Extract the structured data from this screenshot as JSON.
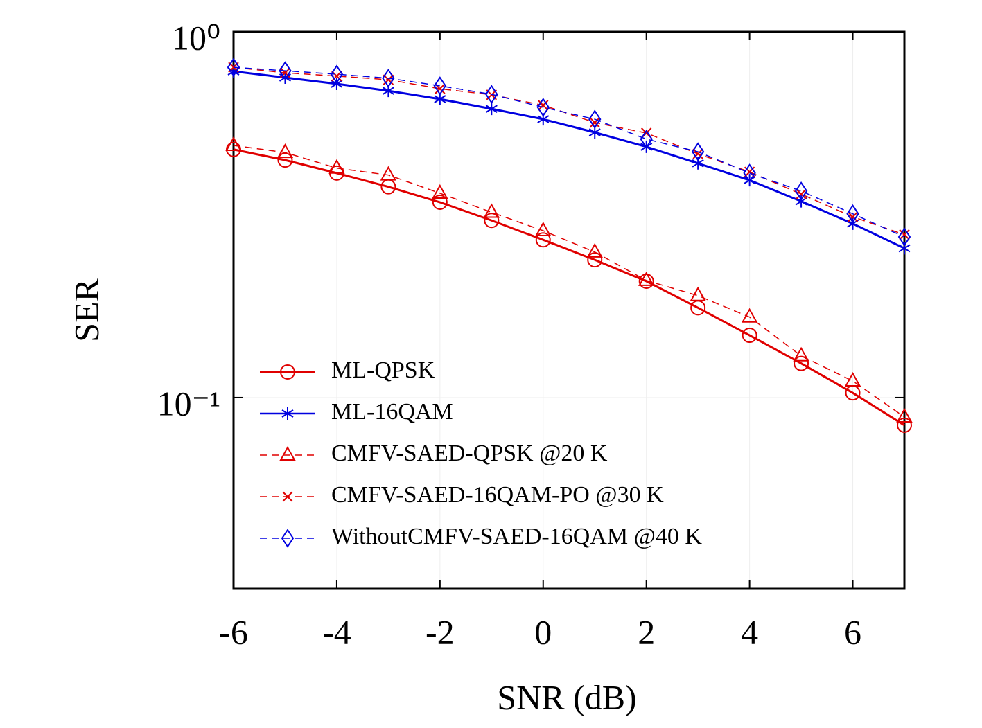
{
  "chart_data": {
    "type": "line",
    "xlabel": "SNR (dB)",
    "ylabel": "SER",
    "x": [
      -6,
      -5,
      -4,
      -3,
      -2,
      -1,
      0,
      1,
      2,
      3,
      4,
      5,
      6,
      7
    ],
    "xlim": [
      -6,
      7
    ],
    "xticks": [
      -6,
      -4,
      -2,
      0,
      2,
      4,
      6
    ],
    "ylim": [
      0.03,
      1
    ],
    "ylog": true,
    "yticks": [
      {
        "value": 1,
        "label": "10⁰"
      },
      {
        "value": 0.1,
        "label": "10⁻¹"
      }
    ],
    "grid": true,
    "legend": "lower left",
    "series": [
      {
        "name": "ML-QPSK",
        "color": "#e00000",
        "marker": "circle",
        "dashed": false,
        "values": [
          0.477,
          0.446,
          0.411,
          0.377,
          0.342,
          0.305,
          0.27,
          0.238,
          0.208,
          0.176,
          0.148,
          0.124,
          0.103,
          0.084
        ]
      },
      {
        "name": "ML-16QAM",
        "color": "#0000e0",
        "marker": "asterisk",
        "dashed": false,
        "values": [
          0.78,
          0.75,
          0.721,
          0.69,
          0.655,
          0.616,
          0.577,
          0.531,
          0.485,
          0.437,
          0.393,
          0.344,
          0.299,
          0.256
        ]
      },
      {
        "name": "CMFV-SAED-QPSK @20 K",
        "color": "#e00000",
        "marker": "triangle",
        "dashed": true,
        "values": [
          0.489,
          0.468,
          0.424,
          0.406,
          0.362,
          0.321,
          0.286,
          0.25,
          0.209,
          0.19,
          0.166,
          0.13,
          0.111,
          0.0885
        ]
      },
      {
        "name": "CMFV-SAED-16QAM-PO @30 K",
        "color": "#e00000",
        "marker": "x",
        "dashed": true,
        "values": [
          0.8,
          0.773,
          0.757,
          0.74,
          0.699,
          0.673,
          0.63,
          0.565,
          0.529,
          0.464,
          0.414,
          0.36,
          0.312,
          0.279
        ]
      },
      {
        "name": "WithoutCMFV-SAED-16QAM @40 K",
        "color": "#0000e0",
        "marker": "diamond",
        "dashed": true,
        "values": [
          0.8,
          0.783,
          0.766,
          0.747,
          0.712,
          0.675,
          0.622,
          0.577,
          0.509,
          0.47,
          0.411,
          0.367,
          0.318,
          0.275
        ]
      }
    ]
  }
}
